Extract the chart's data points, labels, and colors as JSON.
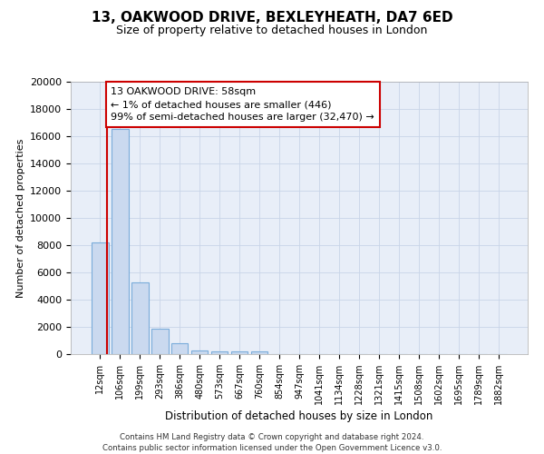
{
  "title1": "13, OAKWOOD DRIVE, BEXLEYHEATH, DA7 6ED",
  "title2": "Size of property relative to detached houses in London",
  "xlabel": "Distribution of detached houses by size in London",
  "ylabel": "Number of detached properties",
  "categories": [
    "12sqm",
    "106sqm",
    "199sqm",
    "293sqm",
    "386sqm",
    "480sqm",
    "573sqm",
    "667sqm",
    "760sqm",
    "854sqm",
    "947sqm",
    "1041sqm",
    "1134sqm",
    "1228sqm",
    "1321sqm",
    "1415sqm",
    "1508sqm",
    "1602sqm",
    "1695sqm",
    "1789sqm",
    "1882sqm"
  ],
  "values": [
    8200,
    16500,
    5300,
    1850,
    800,
    300,
    200,
    200,
    200,
    0,
    0,
    0,
    0,
    0,
    0,
    0,
    0,
    0,
    0,
    0,
    0
  ],
  "bar_color": "#cad9ef",
  "bar_edge_color": "#7aacda",
  "ylim": [
    0,
    20000
  ],
  "yticks": [
    0,
    2000,
    4000,
    6000,
    8000,
    10000,
    12000,
    14000,
    16000,
    18000,
    20000
  ],
  "annotation_text": "13 OAKWOOD DRIVE: 58sqm\n← 1% of detached houses are smaller (446)\n99% of semi-detached houses are larger (32,470) →",
  "annotation_box_facecolor": "white",
  "annotation_box_edgecolor": "#cc0000",
  "property_line_color": "#cc0000",
  "footer_text": "Contains HM Land Registry data © Crown copyright and database right 2024.\nContains public sector information licensed under the Open Government Licence v3.0.",
  "grid_color": "#c8d4e8",
  "background_color": "#e8eef8"
}
